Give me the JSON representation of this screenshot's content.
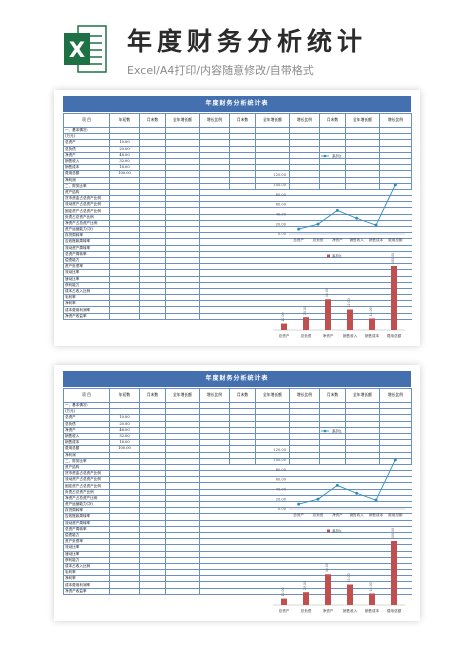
{
  "header": {
    "title": "年度财务分析统计",
    "subtitle": "Excel/A4打印/内容随意修改/自带格式",
    "logo_letter": "X",
    "logo_color": "#1e7145"
  },
  "colors": {
    "title_bar": "#4470b0",
    "line": "#2e8ec0",
    "bar": "#c0504d",
    "grid": "#6b8fc7"
  },
  "sheets": [
    {
      "title": "年度财务分析统计表",
      "header_row": [
        "项  目",
        "年初数",
        "月末数",
        "全年增长额",
        "增长比例",
        "月末数",
        "全年增长额",
        "增长比例",
        "月末数",
        "全年增长额",
        "增长比例"
      ],
      "rows": [
        {
          "label": "一、基本情况：",
          "value": ""
        },
        {
          "label": "(万元)",
          "value": ""
        },
        {
          "label": "总资产",
          "value": "10.00"
        },
        {
          "label": "总负债",
          "value": "20.00"
        },
        {
          "label": "净资产",
          "value": "48.00"
        },
        {
          "label": "销售收入",
          "value": "32.00"
        },
        {
          "label": "销售成本",
          "value": "18.00"
        },
        {
          "label": "费用总额",
          "value": "100.00"
        },
        {
          "label": "净利润",
          "value": ""
        },
        {
          "label": "二、财务比率",
          "value": ""
        },
        {
          "label": "资产结构",
          "value": ""
        },
        {
          "label": "货币资金占总资产比例",
          "value": ""
        },
        {
          "label": "流动资产占总资产比例",
          "value": ""
        },
        {
          "label": "固定资产占总资产比例",
          "value": ""
        },
        {
          "label": "负债占总资产比例",
          "value": ""
        },
        {
          "label": "净资产占总资产比例",
          "value": ""
        },
        {
          "label": "资产运营能力(次)",
          "value": ""
        },
        {
          "label": "存货周转率",
          "value": ""
        },
        {
          "label": "应收账款周转率",
          "value": ""
        },
        {
          "label": "流动资产周转率",
          "value": ""
        },
        {
          "label": "总资产周转率",
          "value": ""
        },
        {
          "label": "偿债能力",
          "value": ""
        },
        {
          "label": "资产负债率",
          "value": ""
        },
        {
          "label": "流动比率",
          "value": ""
        },
        {
          "label": "速动比率",
          "value": ""
        },
        {
          "label": "获利能力",
          "value": ""
        },
        {
          "label": "成本占收入比例",
          "value": ""
        },
        {
          "label": "毛利率",
          "value": ""
        },
        {
          "label": "净利率",
          "value": ""
        },
        {
          "label": "成本费用利润率",
          "value": ""
        },
        {
          "label": "净资产收益率",
          "value": ""
        }
      ],
      "legend": "系列1"
    },
    {
      "title": "年度财务分析统计表",
      "header_row": [
        "项  目",
        "年初数",
        "月末数",
        "全年增长额",
        "增长比例",
        "月末数",
        "全年增长额",
        "增长比例",
        "月末数",
        "全年增长额",
        "增长比例"
      ],
      "rows": [
        {
          "label": "一、基本情况：",
          "value": ""
        },
        {
          "label": "(万元)",
          "value": ""
        },
        {
          "label": "总资产",
          "value": "10.00"
        },
        {
          "label": "总负债",
          "value": "20.00"
        },
        {
          "label": "净资产",
          "value": "48.00"
        },
        {
          "label": "销售收入",
          "value": "32.00"
        },
        {
          "label": "销售成本",
          "value": "18.00"
        },
        {
          "label": "费用总额",
          "value": "100.00"
        },
        {
          "label": "净利润",
          "value": ""
        },
        {
          "label": "二、财务比率",
          "value": ""
        },
        {
          "label": "资产结构",
          "value": ""
        },
        {
          "label": "货币资金占总资产比例",
          "value": ""
        },
        {
          "label": "流动资产占总资产比例",
          "value": ""
        },
        {
          "label": "固定资产占总资产比例",
          "value": ""
        },
        {
          "label": "负债占总资产比例",
          "value": ""
        },
        {
          "label": "净资产占总资产比例",
          "value": ""
        },
        {
          "label": "资产运营能力(次)",
          "value": ""
        },
        {
          "label": "存货周转率",
          "value": ""
        },
        {
          "label": "应收账款周转率",
          "value": ""
        },
        {
          "label": "流动资产周转率",
          "value": ""
        },
        {
          "label": "总资产周转率",
          "value": ""
        },
        {
          "label": "偿债能力",
          "value": ""
        },
        {
          "label": "资产负债率",
          "value": ""
        },
        {
          "label": "流动比率",
          "value": ""
        },
        {
          "label": "速动比率",
          "value": ""
        },
        {
          "label": "获利能力",
          "value": ""
        },
        {
          "label": "成本占收入比例",
          "value": ""
        },
        {
          "label": "毛利率",
          "value": ""
        },
        {
          "label": "净利率",
          "value": ""
        },
        {
          "label": "成本费用利润率",
          "value": ""
        },
        {
          "label": "净资产收益率",
          "value": ""
        }
      ],
      "legend": "系列1"
    }
  ],
  "chart_data": [
    {
      "type": "line",
      "categories": [
        "总资产",
        "总负债",
        "净资产",
        "销售收入",
        "销售成本",
        "费用总额"
      ],
      "series": [
        {
          "name": "系列1",
          "values": [
            10,
            20,
            48,
            32,
            18,
            100
          ]
        }
      ],
      "yticks": [
        "0.00",
        "20.00",
        "40.00",
        "60.00",
        "80.00",
        "100.00",
        "120.00"
      ],
      "ylim": [
        0,
        120
      ],
      "legend": "top"
    },
    {
      "type": "bar",
      "categories": [
        "总资产",
        "总负债",
        "净资产",
        "销售收入",
        "销售成本",
        "费用总额"
      ],
      "series": [
        {
          "name": "系列1",
          "values": [
            10,
            20,
            48,
            32,
            18,
            100
          ]
        }
      ],
      "data_labels": [
        "10.00",
        "20.00",
        "48.00",
        "32.00",
        "18.00",
        "100.00"
      ],
      "legend": "top"
    }
  ]
}
